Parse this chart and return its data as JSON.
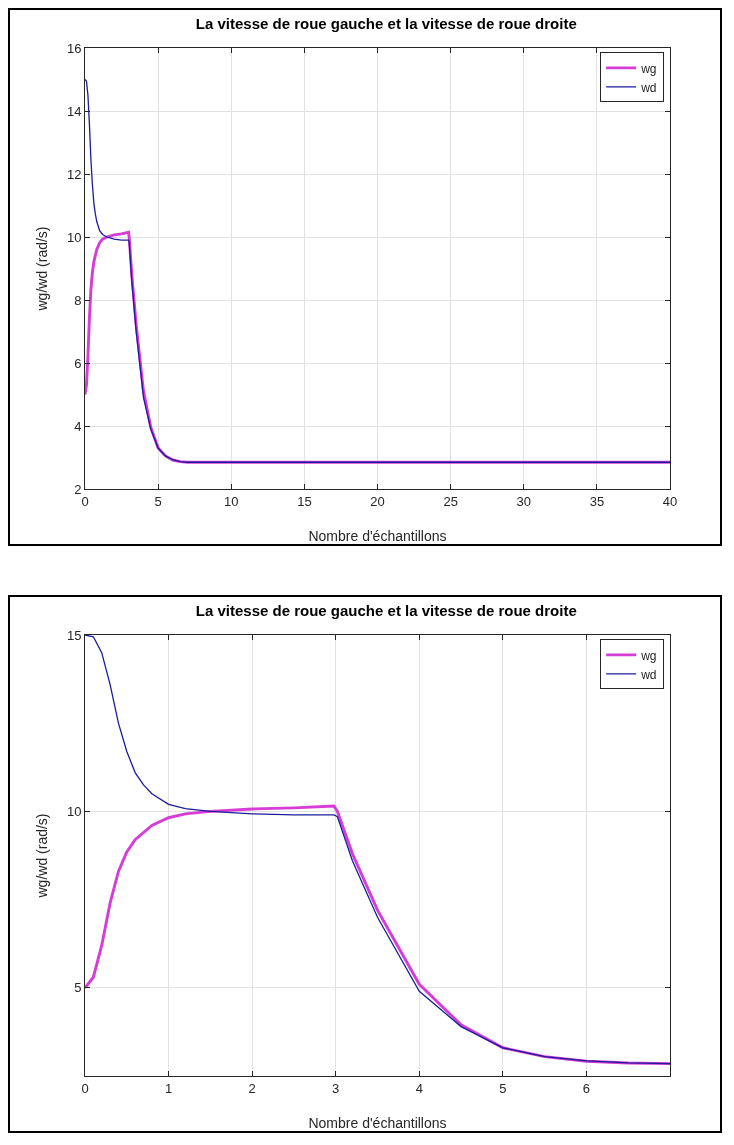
{
  "chart_data": [
    {
      "type": "line",
      "title": "La vitesse de roue gauche et la vitesse de roue droite",
      "xlabel": "Nombre d'échantillons",
      "ylabel": "wg/wd (rad/s)",
      "xlim": [
        0,
        40
      ],
      "xticks": [
        0,
        5,
        10,
        15,
        20,
        25,
        30,
        35,
        40
      ],
      "ylim": [
        2,
        16
      ],
      "yticks": [
        2,
        4,
        6,
        8,
        10,
        12,
        14,
        16
      ],
      "grid": true,
      "legend": "top right",
      "line_style": "solid",
      "series": [
        {
          "name": "wg",
          "color": "#d63cd6",
          "x": [
            0,
            0.1,
            0.2,
            0.3,
            0.4,
            0.5,
            0.6,
            0.8,
            1,
            1.2,
            1.5,
            2,
            2.5,
            2.98,
            3.02,
            3.2,
            3.5,
            4,
            4.5,
            5,
            5.5,
            6,
            6.5,
            7,
            40
          ],
          "values": [
            5,
            5.3,
            6.2,
            7.4,
            8.3,
            8.85,
            9.2,
            9.6,
            9.82,
            9.93,
            10,
            10.07,
            10.1,
            10.15,
            10,
            8.8,
            7.2,
            5.1,
            3.95,
            3.3,
            3.05,
            2.92,
            2.87,
            2.85,
            2.85
          ]
        },
        {
          "name": "wd",
          "color": "#1c1c9c",
          "x": [
            0,
            0.1,
            0.2,
            0.3,
            0.4,
            0.5,
            0.6,
            0.7,
            0.8,
            1,
            1.2,
            1.5,
            2,
            2.5,
            2.98,
            3.02,
            3.2,
            3.5,
            4,
            4.5,
            5,
            5.5,
            6,
            6.5,
            7,
            40
          ],
          "values": [
            15,
            14.95,
            14.5,
            13.6,
            12.5,
            11.7,
            11.1,
            10.75,
            10.5,
            10.2,
            10.08,
            10,
            9.93,
            9.9,
            9.9,
            9.85,
            8.6,
            7,
            4.9,
            3.9,
            3.3,
            3.05,
            2.93,
            2.87,
            2.85,
            2.85
          ]
        }
      ]
    },
    {
      "type": "line",
      "title": "La vitesse de roue gauche et la vitesse de roue droite",
      "xlabel": "Nombre d'échantillons",
      "ylabel": "wg/wd (rad/s)",
      "xlim": [
        0,
        7
      ],
      "xticks": [
        0,
        1,
        2,
        3,
        4,
        5,
        6
      ],
      "ylim": [
        2.5,
        15
      ],
      "yticks": [
        5,
        10,
        15
      ],
      "grid": true,
      "legend": "top right",
      "line_style": "solid",
      "series": [
        {
          "name": "wg",
          "color": "#d63cd6",
          "x": [
            0,
            0.1,
            0.2,
            0.3,
            0.4,
            0.5,
            0.6,
            0.8,
            1,
            1.2,
            1.5,
            2,
            2.5,
            2.98,
            3.02,
            3.2,
            3.5,
            4,
            4.5,
            5,
            5.5,
            6,
            6.5,
            7
          ],
          "values": [
            5,
            5.3,
            6.2,
            7.4,
            8.3,
            8.85,
            9.2,
            9.6,
            9.82,
            9.93,
            10,
            10.07,
            10.1,
            10.15,
            10,
            8.8,
            7.2,
            5.1,
            3.95,
            3.3,
            3.05,
            2.92,
            2.87,
            2.85
          ]
        },
        {
          "name": "wd",
          "color": "#1c1c9c",
          "x": [
            0,
            0.1,
            0.2,
            0.3,
            0.4,
            0.5,
            0.6,
            0.7,
            0.8,
            1,
            1.2,
            1.5,
            2,
            2.5,
            2.98,
            3.02,
            3.2,
            3.5,
            4,
            4.5,
            5,
            5.5,
            6,
            6.5,
            7
          ],
          "values": [
            15,
            14.95,
            14.5,
            13.6,
            12.5,
            11.7,
            11.1,
            10.75,
            10.5,
            10.2,
            10.08,
            10,
            9.93,
            9.9,
            9.9,
            9.85,
            8.6,
            7,
            4.9,
            3.9,
            3.3,
            3.05,
            2.93,
            2.87,
            2.85
          ]
        }
      ]
    }
  ]
}
